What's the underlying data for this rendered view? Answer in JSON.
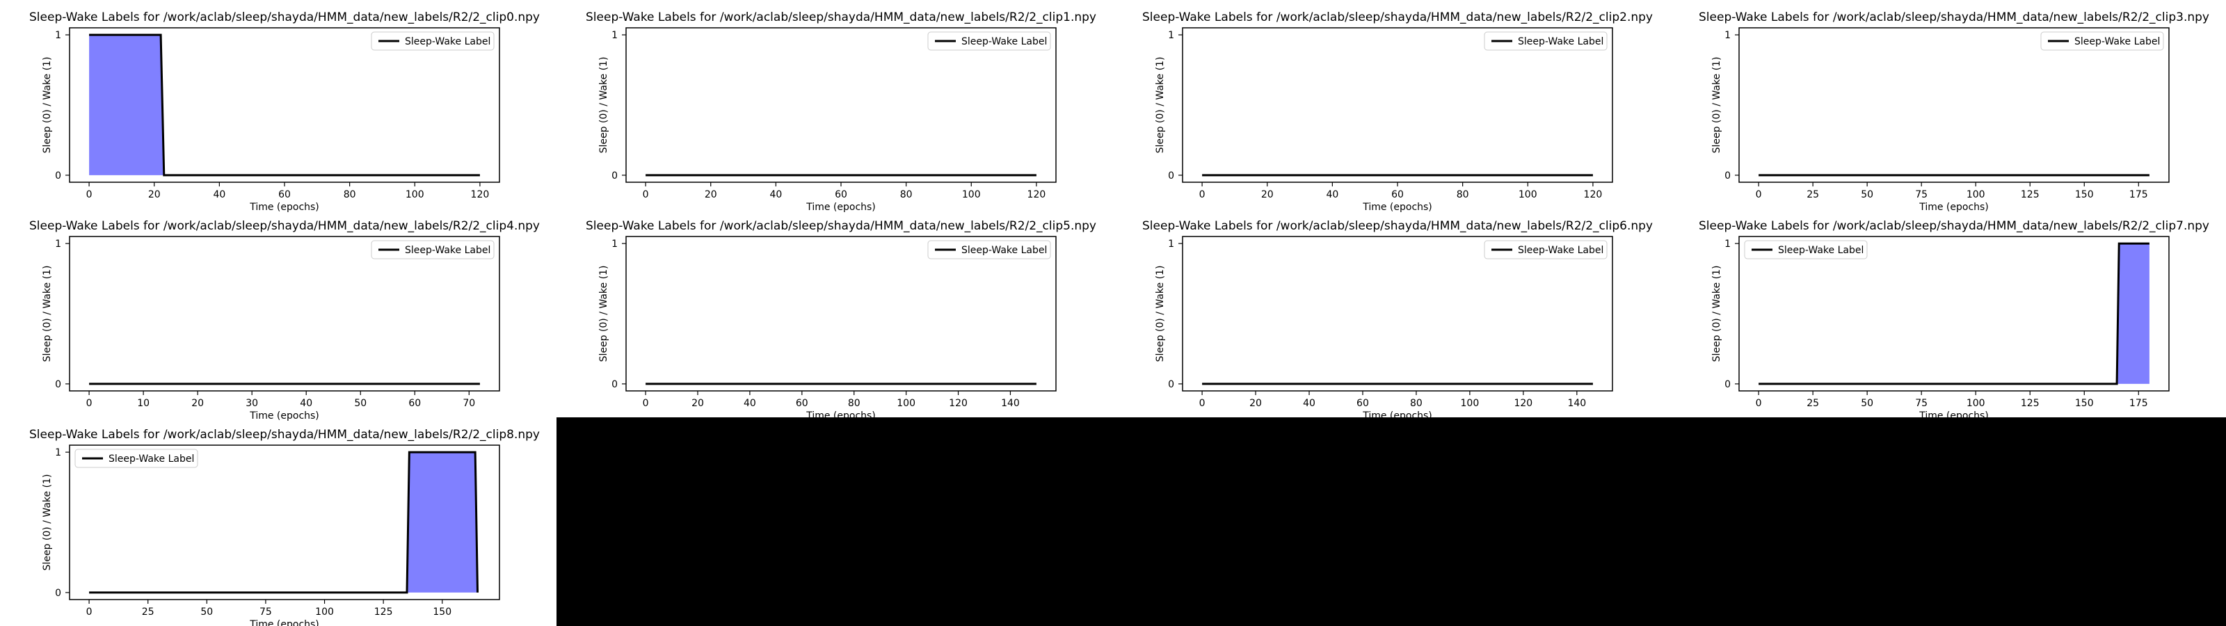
{
  "colors": {
    "line": "#000000",
    "fill": "#8080ff",
    "background": "#ffffff",
    "mask": "#000000"
  },
  "chart_data": [
    {
      "type": "area",
      "title": "Sleep-Wake Labels for /work/aclab/sleep/shayda/HMM_data/new_labels/R2/2_clip0.npy",
      "ylabel": "Sleep (0) / Wake (1)",
      "xlabel": "Time (epochs)",
      "xlim": [
        -6,
        126
      ],
      "ylim": [
        -0.05,
        1.05
      ],
      "xticks": [
        0,
        20,
        40,
        60,
        80,
        100,
        120
      ],
      "yticks": [
        0,
        1
      ],
      "legend": {
        "label": "Sleep-Wake Label",
        "position": "top-right"
      },
      "x": [
        0,
        22,
        23,
        120
      ],
      "y": [
        1,
        1,
        0,
        0
      ]
    },
    {
      "type": "area",
      "title": "Sleep-Wake Labels for /work/aclab/sleep/shayda/HMM_data/new_labels/R2/2_clip1.npy",
      "ylabel": "Sleep (0) / Wake (1)",
      "xlabel": "Time (epochs)",
      "xlim": [
        -6,
        126
      ],
      "ylim": [
        -0.05,
        1.05
      ],
      "xticks": [
        0,
        20,
        40,
        60,
        80,
        100,
        120
      ],
      "yticks": [
        0,
        1
      ],
      "legend": {
        "label": "Sleep-Wake Label",
        "position": "top-right"
      },
      "x": [
        0,
        120
      ],
      "y": [
        0,
        0
      ]
    },
    {
      "type": "area",
      "title": "Sleep-Wake Labels for /work/aclab/sleep/shayda/HMM_data/new_labels/R2/2_clip2.npy",
      "ylabel": "Sleep (0) / Wake (1)",
      "xlabel": "Time (epochs)",
      "xlim": [
        -6,
        126
      ],
      "ylim": [
        -0.05,
        1.05
      ],
      "xticks": [
        0,
        20,
        40,
        60,
        80,
        100,
        120
      ],
      "yticks": [
        0,
        1
      ],
      "legend": {
        "label": "Sleep-Wake Label",
        "position": "top-right"
      },
      "x": [
        0,
        120
      ],
      "y": [
        0,
        0
      ]
    },
    {
      "type": "area",
      "title": "Sleep-Wake Labels for /work/aclab/sleep/shayda/HMM_data/new_labels/R2/2_clip3.npy",
      "ylabel": "Sleep (0) / Wake (1)",
      "xlabel": "Time (epochs)",
      "xlim": [
        -9,
        189
      ],
      "ylim": [
        -0.05,
        1.05
      ],
      "xticks": [
        0,
        25,
        50,
        75,
        100,
        125,
        150,
        175
      ],
      "yticks": [
        0,
        1
      ],
      "legend": {
        "label": "Sleep-Wake Label",
        "position": "top-right"
      },
      "x": [
        0,
        180
      ],
      "y": [
        0,
        0
      ]
    },
    {
      "type": "area",
      "title": "Sleep-Wake Labels for /work/aclab/sleep/shayda/HMM_data/new_labels/R2/2_clip4.npy",
      "ylabel": "Sleep (0) / Wake (1)",
      "xlabel": "Time (epochs)",
      "xlim": [
        -3.6,
        75.6
      ],
      "ylim": [
        -0.05,
        1.05
      ],
      "xticks": [
        0,
        10,
        20,
        30,
        40,
        50,
        60,
        70
      ],
      "yticks": [
        0,
        1
      ],
      "legend": {
        "label": "Sleep-Wake Label",
        "position": "top-right"
      },
      "x": [
        0,
        72
      ],
      "y": [
        0,
        0
      ]
    },
    {
      "type": "area",
      "title": "Sleep-Wake Labels for /work/aclab/sleep/shayda/HMM_data/new_labels/R2/2_clip5.npy",
      "ylabel": "Sleep (0) / Wake (1)",
      "xlabel": "Time (epochs)",
      "xlim": [
        -7.5,
        157.5
      ],
      "ylim": [
        -0.05,
        1.05
      ],
      "xticks": [
        0,
        20,
        40,
        60,
        80,
        100,
        120,
        140
      ],
      "yticks": [
        0,
        1
      ],
      "legend": {
        "label": "Sleep-Wake Label",
        "position": "top-right"
      },
      "x": [
        0,
        150
      ],
      "y": [
        0,
        0
      ]
    },
    {
      "type": "area",
      "title": "Sleep-Wake Labels for /work/aclab/sleep/shayda/HMM_data/new_labels/R2/2_clip6.npy",
      "ylabel": "Sleep (0) / Wake (1)",
      "xlabel": "Time (epochs)",
      "xlim": [
        -7.3,
        153.3
      ],
      "ylim": [
        -0.05,
        1.05
      ],
      "xticks": [
        0,
        20,
        40,
        60,
        80,
        100,
        120,
        140
      ],
      "yticks": [
        0,
        1
      ],
      "legend": {
        "label": "Sleep-Wake Label",
        "position": "top-right"
      },
      "x": [
        0,
        146
      ],
      "y": [
        0,
        0
      ]
    },
    {
      "type": "area",
      "title": "Sleep-Wake Labels for /work/aclab/sleep/shayda/HMM_data/new_labels/R2/2_clip7.npy",
      "ylabel": "Sleep (0) / Wake (1)",
      "xlabel": "Time (epochs)",
      "xlim": [
        -9,
        189
      ],
      "ylim": [
        -0.05,
        1.05
      ],
      "xticks": [
        0,
        25,
        50,
        75,
        100,
        125,
        150,
        175
      ],
      "yticks": [
        0,
        1
      ],
      "legend": {
        "label": "Sleep-Wake Label",
        "position": "top-left"
      },
      "x": [
        0,
        165,
        166,
        180
      ],
      "y": [
        0,
        0,
        1,
        1
      ]
    },
    {
      "type": "area",
      "title": "Sleep-Wake Labels for /work/aclab/sleep/shayda/HMM_data/new_labels/R2/2_clip8.npy",
      "ylabel": "Sleep (0) / Wake (1)",
      "xlabel": "Time (epochs)",
      "xlim": [
        -8.3,
        174.3
      ],
      "ylim": [
        -0.05,
        1.05
      ],
      "xticks": [
        0,
        25,
        50,
        75,
        100,
        125,
        150
      ],
      "yticks": [
        0,
        1
      ],
      "legend": {
        "label": "Sleep-Wake Label",
        "position": "top-left"
      },
      "x": [
        0,
        135,
        136,
        164,
        165
      ],
      "y": [
        0,
        0,
        1,
        1,
        0
      ]
    }
  ]
}
